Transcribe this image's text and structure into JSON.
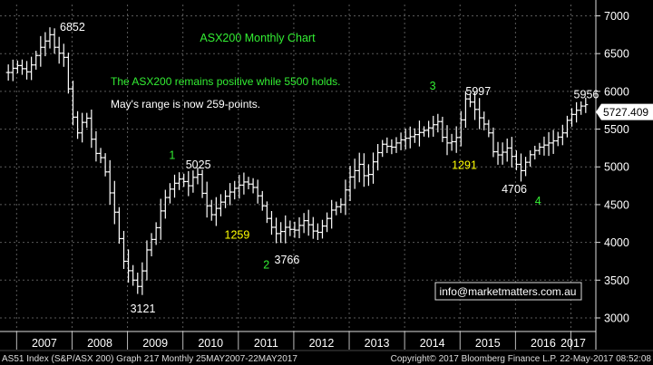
{
  "chart_data": {
    "type": "ohlc",
    "title": "ASX200 Monthly Chart",
    "y_ticks": [
      3000,
      3500,
      4000,
      4500,
      5000,
      5500,
      6000,
      6500,
      7000
    ],
    "y_tick_labels": [
      "3000",
      "3500",
      "4000",
      "4500",
      "5000",
      "5500",
      "6000",
      "6500",
      "7000"
    ],
    "ylim": [
      2820,
      7150
    ],
    "x_ticks": [
      "2007",
      "2008",
      "2009",
      "2010",
      "2011",
      "2012",
      "2013",
      "2014",
      "2015",
      "2016",
      "2017"
    ],
    "x_start": 2006.7,
    "x_end": 2017.45,
    "grid": true,
    "current_value": 5727.409,
    "current_value_label": "5727.409",
    "series": [
      {
        "color": "#ffffff",
        "anchors": [
          [
            2006.85,
            6250
          ],
          [
            2007.0,
            6350
          ],
          [
            2007.2,
            6250
          ],
          [
            2007.4,
            6550
          ],
          [
            2007.6,
            6750
          ],
          [
            2007.7,
            6550
          ],
          [
            2007.85,
            6450
          ],
          [
            2008.0,
            5700
          ],
          [
            2008.1,
            5450
          ],
          [
            2008.25,
            5700
          ],
          [
            2008.4,
            5200
          ],
          [
            2008.55,
            5100
          ],
          [
            2008.7,
            4600
          ],
          [
            2008.8,
            4300
          ],
          [
            2008.9,
            3800
          ],
          [
            2009.0,
            3650
          ],
          [
            2009.1,
            3500
          ],
          [
            2009.2,
            3400
          ],
          [
            2009.35,
            3900
          ],
          [
            2009.5,
            4150
          ],
          [
            2009.65,
            4550
          ],
          [
            2009.8,
            4750
          ],
          [
            2009.95,
            4850
          ],
          [
            2010.1,
            4750
          ],
          [
            2010.25,
            4950
          ],
          [
            2010.35,
            4650
          ],
          [
            2010.5,
            4350
          ],
          [
            2010.6,
            4450
          ],
          [
            2010.75,
            4600
          ],
          [
            2010.9,
            4700
          ],
          [
            2011.1,
            4800
          ],
          [
            2011.25,
            4750
          ],
          [
            2011.4,
            4550
          ],
          [
            2011.55,
            4250
          ],
          [
            2011.7,
            4100
          ],
          [
            2011.85,
            4200
          ],
          [
            2012.0,
            4150
          ],
          [
            2012.2,
            4300
          ],
          [
            2012.4,
            4100
          ],
          [
            2012.55,
            4250
          ],
          [
            2012.7,
            4450
          ],
          [
            2012.85,
            4500
          ],
          [
            2013.0,
            4850
          ],
          [
            2013.2,
            5050
          ],
          [
            2013.3,
            4800
          ],
          [
            2013.45,
            5100
          ],
          [
            2013.6,
            5300
          ],
          [
            2013.75,
            5250
          ],
          [
            2013.9,
            5350
          ],
          [
            2014.1,
            5400
          ],
          [
            2014.25,
            5450
          ],
          [
            2014.4,
            5500
          ],
          [
            2014.5,
            5550
          ],
          [
            2014.6,
            5600
          ],
          [
            2014.7,
            5350
          ],
          [
            2014.8,
            5300
          ],
          [
            2014.95,
            5400
          ],
          [
            2015.1,
            5900
          ],
          [
            2015.2,
            5850
          ],
          [
            2015.35,
            5650
          ],
          [
            2015.5,
            5500
          ],
          [
            2015.6,
            5200
          ],
          [
            2015.7,
            5150
          ],
          [
            2015.85,
            5250
          ],
          [
            2016.0,
            5050
          ],
          [
            2016.1,
            4950
          ],
          [
            2016.25,
            5150
          ],
          [
            2016.4,
            5250
          ],
          [
            2016.55,
            5300
          ],
          [
            2016.7,
            5350
          ],
          [
            2016.85,
            5450
          ],
          [
            2016.95,
            5650
          ],
          [
            2017.1,
            5750
          ],
          [
            2017.25,
            5850
          ],
          [
            2017.33,
            5727
          ]
        ]
      }
    ],
    "annotations": [
      {
        "text": "6852",
        "x": 2007.78,
        "y": 6852,
        "color": "#ffffff"
      },
      {
        "text": "3121",
        "x": 2009.05,
        "y": 3121,
        "color": "#ffffff"
      },
      {
        "text": "1",
        "x": 2009.75,
        "y": 5150,
        "color": "#33ee33"
      },
      {
        "text": "5025",
        "x": 2010.05,
        "y": 5025,
        "color": "#ffffff"
      },
      {
        "text": "1259",
        "x": 2010.75,
        "y": 4100,
        "color": "#ffff00"
      },
      {
        "text": "2",
        "x": 2011.45,
        "y": 3700,
        "color": "#33ee33"
      },
      {
        "text": "3766",
        "x": 2011.65,
        "y": 3766,
        "color": "#ffffff"
      },
      {
        "text": "3",
        "x": 2014.45,
        "y": 6070,
        "color": "#33ee33"
      },
      {
        "text": "5997",
        "x": 2015.1,
        "y": 5997,
        "color": "#ffffff"
      },
      {
        "text": "1291",
        "x": 2014.85,
        "y": 5020,
        "color": "#ffff00"
      },
      {
        "text": "4706",
        "x": 2015.75,
        "y": 4706,
        "color": "#ffffff"
      },
      {
        "text": "4",
        "x": 2016.35,
        "y": 4550,
        "color": "#33ee33"
      },
      {
        "text": "5956",
        "x": 2017.05,
        "y": 5956,
        "color": "#ffffff"
      }
    ],
    "notes": [
      {
        "text": "The ASX200 remains positive while 5500 holds.",
        "color": "#33ee33"
      },
      {
        "text": "May's range is now 259-points.",
        "color": "#ffffff"
      }
    ]
  },
  "watermark_box": "info@marketmatters.com.au",
  "footer": {
    "left": "AS51 Index (S&P/ASX 200) Graph 217  Monthly 25MAY2007-22MAY2017",
    "right": "Copyright© 2017 Bloomberg Finance L.P.    22-May-2017 08:52:08"
  },
  "colors": {
    "background": "#000000",
    "grid": "#5a5a5a",
    "price_line": "#ffffff",
    "title": "#33ee33",
    "badge_bg": "#ffffff",
    "badge_text": "#000000",
    "footer_text": "#dddddd"
  }
}
